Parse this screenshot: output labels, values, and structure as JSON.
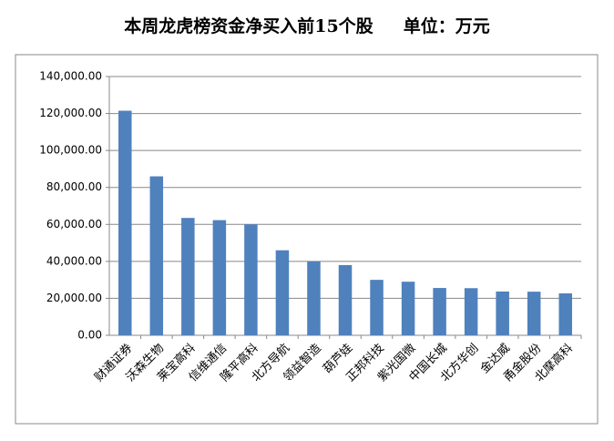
{
  "chart_data": {
    "type": "bar",
    "title": "本周龙虎榜资金净买入前15个股     单位：万元",
    "categories": [
      "财通证券",
      "沃森生物",
      "莱宝高科",
      "信维通信",
      "隆平高科",
      "北方导航",
      "领益智造",
      "葫芦娃",
      "正邦科技",
      "紫光国微",
      "中国长城",
      "北方华创",
      "金达威",
      "甬金股份",
      "北摩高科"
    ],
    "values": [
      121500,
      86000,
      63500,
      62300,
      60000,
      46000,
      40000,
      38000,
      30000,
      29000,
      25600,
      25500,
      23700,
      23600,
      22700
    ],
    "color": "#4f81bd",
    "ylim": [
      0,
      140000
    ],
    "yticks": [
      {
        "value": 0,
        "label": "0.00"
      },
      {
        "value": 20000,
        "label": "20,000.00"
      },
      {
        "value": 40000,
        "label": "40,000.00"
      },
      {
        "value": 60000,
        "label": "60,000.00"
      },
      {
        "value": 80000,
        "label": "80,000.00"
      },
      {
        "value": 100000,
        "label": "100,000.00"
      },
      {
        "value": 120000,
        "label": "120,000.00"
      },
      {
        "value": 140000,
        "label": "140,000.00"
      }
    ],
    "grid": true
  }
}
